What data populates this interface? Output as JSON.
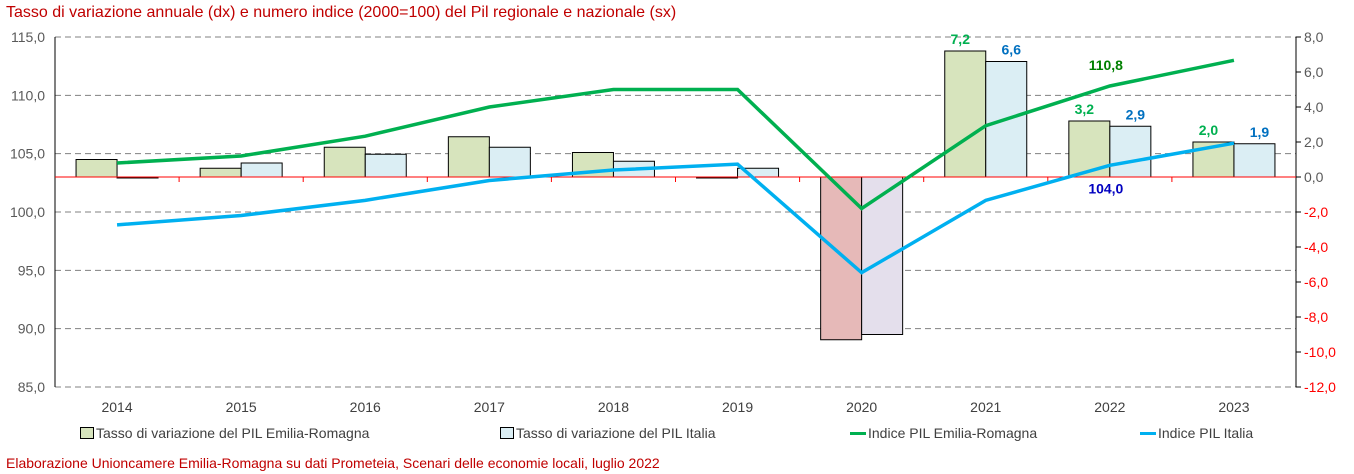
{
  "chart_data": {
    "type": "bar+line",
    "title": "Tasso di variazione annuale (dx) e numero indice (2000=100) del Pil regionale e nazionale (sx)",
    "categories": [
      "2014",
      "2015",
      "2016",
      "2017",
      "2018",
      "2019",
      "2020",
      "2021",
      "2022",
      "2023"
    ],
    "left_axis": {
      "range": [
        85,
        115
      ],
      "ticks": [
        "85,0",
        "90,0",
        "95,0",
        "100,0",
        "105,0",
        "110,0",
        "115,0"
      ]
    },
    "right_axis": {
      "range": [
        -12,
        8
      ],
      "ticks": [
        "-12,0",
        "-10,0",
        "-8,0",
        "-6,0",
        "-4,0",
        "-2,0",
        "0,0",
        "2,0",
        "4,0",
        "6,0",
        "8,0"
      ]
    },
    "grid": true,
    "legend_position": "bottom",
    "bar_series": [
      {
        "name": "Tasso di variazione del PIL Emilia-Romagna",
        "axis": "right",
        "color": "#d7e4bd",
        "negative_color": "#e6b9b8",
        "values": [
          1.0,
          0.5,
          1.7,
          2.3,
          1.4,
          0.0,
          -9.3,
          7.2,
          3.2,
          2.0
        ],
        "labels": {
          "7": "7,2",
          "8": "3,2",
          "9": "2,0"
        },
        "label_color": "#00b050"
      },
      {
        "name": "Tasso di variazione del PIL Italia",
        "axis": "right",
        "color": "#dbeef4",
        "negative_color": "#e4dfec",
        "values": [
          0.0,
          0.8,
          1.3,
          1.7,
          0.9,
          0.5,
          -9.0,
          6.6,
          2.9,
          1.9
        ],
        "labels": {
          "7": "6,6",
          "8": "2,9",
          "9": "1,9"
        },
        "label_color": "#0070c0"
      }
    ],
    "line_series": [
      {
        "name": "Indice PIL Emilia-Romagna",
        "axis": "left",
        "color": "#00b050",
        "values": [
          104.2,
          104.8,
          106.5,
          109.0,
          110.5,
          110.5,
          100.3,
          107.4,
          110.8,
          113.0
        ],
        "labels": {
          "8": "110,8"
        },
        "label_color": "#008000"
      },
      {
        "name": "Indice PIL Italia",
        "axis": "left",
        "color": "#00b0f0",
        "values": [
          98.9,
          99.7,
          101.0,
          102.7,
          103.6,
          104.1,
          94.8,
          101.0,
          104.0,
          105.9
        ],
        "labels": {
          "8": "104,0"
        },
        "label_color": "#0000c0"
      }
    ]
  },
  "source": "Elaborazione Unioncamere Emilia-Romagna su dati Prometeia, Scenari delle economie locali, luglio 2022"
}
